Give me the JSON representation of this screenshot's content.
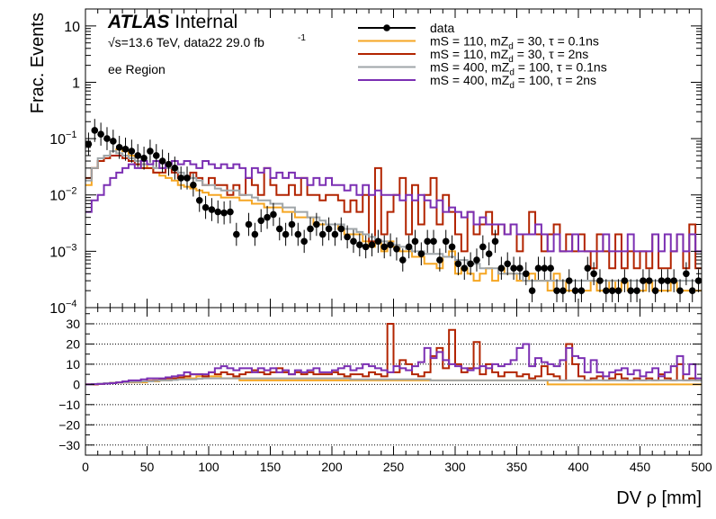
{
  "chart_data": [
    {
      "type": "line",
      "panel": "upper",
      "header": {
        "experiment": "ATLAS",
        "status": "Internal",
        "energy_line": "√s=13.6 TeV, data22 29.0 fb",
        "energy_line_sup": "-1",
        "region": "ee Region"
      },
      "ylabel": "Frac. Events",
      "y_scale": "log",
      "ylim": [
        0.0001,
        20
      ],
      "y_ticks": [
        {
          "value": 10,
          "label": "10"
        },
        {
          "value": 1,
          "label": "1"
        },
        {
          "value": 0.1,
          "label": "10",
          "exp": "−1"
        },
        {
          "value": 0.01,
          "label": "10",
          "exp": "−2"
        },
        {
          "value": 0.001,
          "label": "10",
          "exp": "−3"
        },
        {
          "value": 0.0001,
          "label": "10",
          "exp": "−4"
        }
      ],
      "xlim": [
        0,
        500
      ],
      "legend_position": "top-right",
      "series": [
        {
          "name": "data",
          "color": "#000000",
          "style": "markers",
          "values": [
            0.08,
            0.14,
            0.12,
            0.1,
            0.09,
            0.07,
            0.065,
            0.06,
            0.05,
            0.045,
            0.06,
            0.05,
            0.04,
            0.035,
            0.03,
            0.02,
            0.02,
            0.015,
            0.008,
            0.006,
            0.0055,
            0.005,
            0.0048,
            0.005,
            0.002,
            null,
            0.003,
            0.002,
            0.0035,
            0.004,
            0.0045,
            0.0025,
            0.002,
            0.003,
            0.002,
            0.0015,
            0.0025,
            0.003,
            0.002,
            0.0025,
            0.002,
            0.0025,
            0.0018,
            0.0015,
            0.0013,
            0.0012,
            0.0013,
            0.0015,
            0.0012,
            0.0013,
            0.0011,
            0.0007,
            0.0012,
            0.0015,
            0.0009,
            0.0015,
            0.0015,
            0.0007,
            0.0015,
            0.0012,
            0.0006,
            0.0005,
            0.0006,
            0.0007,
            0.0012,
            0.0009,
            0.0015,
            0.0005,
            0.0006,
            0.0005,
            0.0005,
            0.0004,
            0.0002,
            0.0005,
            0.0005,
            0.0005,
            0.0002,
            0.0002,
            0.0003,
            0.0002,
            0.0002,
            0.0005,
            0.0004,
            0.0003,
            0.0002,
            0.0002,
            0.0002,
            0.0003,
            0.0002,
            0.0002,
            0.0003,
            0.0003,
            0.0002,
            0.0003,
            0.0003,
            0.0003,
            0.0002,
            0.0004,
            0.0002,
            0.0003
          ]
        },
        {
          "name": "mS = 110, mZ_d = 30, τ = 0.1ns",
          "color": "#f5a623",
          "style": "step",
          "values": [
            0.015,
            0.03,
            0.04,
            0.05,
            0.06,
            0.065,
            0.06,
            0.05,
            0.04,
            0.035,
            0.03,
            0.025,
            0.022,
            0.02,
            0.018,
            0.015,
            0.014,
            0.013,
            0.012,
            0.011,
            0.01,
            0.01,
            0.009,
            0.009,
            0.009,
            0.008,
            0.008,
            0.007,
            0.007,
            0.006,
            0.006,
            0.006,
            0.005,
            0.005,
            0.004,
            0.004,
            0.004,
            0.003,
            0.003,
            0.003,
            0.003,
            0.0025,
            0.002,
            0.002,
            0.002,
            0.0015,
            0.0012,
            0.0015,
            0.001,
            0.0015,
            0.0012,
            0.001,
            0.001,
            0.0008,
            0.0008,
            0.0006,
            0.0006,
            0.0005,
            0.0008,
            0.001,
            0.0004,
            0.0005,
            0.0004,
            0.0003,
            0.0004,
            0.0005,
            0.0003,
            0.0005,
            0.0004,
            0.0004,
            0.0003,
            0.0003,
            0.0004,
            0.0003,
            0.0003,
            0.0002,
            0.0004,
            0.0003,
            0.0002,
            0.0002,
            0.0002,
            0.0002,
            0.0003,
            0.0002,
            0.0002,
            0.0003,
            0.0002,
            0.0003,
            0.0002,
            0.0002,
            0.0002,
            0.0003,
            0.0002,
            0.0002,
            0.0002,
            0.0003,
            0.0002,
            0.0002,
            0.0002,
            0.0002
          ]
        },
        {
          "name": "mS = 110, mZ_d = 30, τ = 2ns",
          "color": "#b22400",
          "style": "step",
          "values": [
            0.02,
            0.03,
            0.04,
            0.045,
            0.05,
            0.05,
            0.045,
            0.04,
            0.035,
            0.03,
            0.03,
            0.025,
            0.025,
            0.03,
            0.025,
            0.02,
            0.02,
            0.025,
            0.02,
            0.015,
            0.02,
            0.015,
            0.015,
            0.01,
            0.015,
            0.01,
            0.02,
            0.015,
            0.01,
            0.03,
            0.015,
            0.01,
            0.01,
            0.015,
            0.01,
            0.02,
            0.01,
            0.01,
            0.008,
            0.01,
            0.01,
            0.008,
            0.005,
            0.008,
            0.005,
            0.01,
            0.0015,
            0.03,
            0.002,
            0.005,
            0.01,
            0.02,
            0.002,
            0.015,
            0.003,
            0.01,
            0.02,
            0.003,
            0.01,
            0.005,
            0.002,
            0.001,
            0.005,
            0.002,
            0.003,
            0.005,
            0.002,
            0.003,
            0.002,
            0.003,
            0.001,
            0.002,
            0.005,
            0.002,
            0.001,
            0.002,
            0.003,
            0.001,
            0.002,
            0.001,
            0.002,
            0.001,
            0.0005,
            0.002,
            0.001,
            0.0005,
            0.002,
            0.0005,
            0.001,
            0.0005,
            0.001,
            0.0005,
            0.002,
            0.0005,
            0.0005,
            0.001,
            0.002,
            0.0005,
            0.003,
            0.0005
          ]
        },
        {
          "name": "mS = 400, mZ_d = 100, τ = 0.1ns",
          "color": "#9fa5a8",
          "style": "step",
          "values": [
            0.018,
            0.03,
            0.045,
            0.05,
            0.06,
            0.055,
            0.05,
            0.045,
            0.04,
            0.035,
            0.035,
            0.03,
            0.03,
            0.03,
            0.03,
            0.025,
            0.02,
            0.02,
            0.018,
            0.015,
            0.015,
            0.013,
            0.012,
            0.012,
            0.012,
            0.01,
            0.01,
            0.009,
            0.008,
            0.008,
            0.007,
            0.007,
            0.006,
            0.006,
            0.005,
            0.005,
            0.004,
            0.004,
            0.0035,
            0.003,
            0.003,
            0.003,
            0.0025,
            0.0025,
            0.0022,
            0.002,
            0.0018,
            0.0016,
            0.0015,
            0.0014,
            0.0013,
            0.0012,
            0.0011,
            0.001,
            0.001,
            0.0009,
            0.0009,
            0.0009,
            0.0008,
            0.0008,
            0.0007,
            0.0007,
            0.0006,
            0.0006,
            0.0005,
            0.0005,
            0.0005,
            0.0004,
            0.0004,
            0.0004,
            0.0004,
            0.0003,
            0.0003,
            0.0003,
            0.0003,
            0.0003,
            0.0003,
            0.0003,
            0.0003,
            0.0003,
            0.0003,
            0.0003,
            0.0003,
            0.0003,
            0.0003,
            0.0003,
            0.0003,
            0.0003,
            0.0003,
            0.0003,
            0.0003,
            0.0003,
            0.0003,
            0.0003,
            0.0003,
            0.0003,
            0.0003,
            0.0003,
            0.0003,
            0.0003
          ]
        },
        {
          "name": "mS = 400, mZ_d = 100, τ = 2ns",
          "color": "#7b2fb3",
          "style": "step",
          "values": [
            0.005,
            0.008,
            0.01,
            0.015,
            0.02,
            0.025,
            0.03,
            0.035,
            0.03,
            0.04,
            0.035,
            0.04,
            0.03,
            0.035,
            0.04,
            0.035,
            0.04,
            0.035,
            0.03,
            0.04,
            0.035,
            0.03,
            0.035,
            0.03,
            0.035,
            0.03,
            0.02,
            0.03,
            0.025,
            0.03,
            0.02,
            0.025,
            0.02,
            0.025,
            0.02,
            0.02,
            0.015,
            0.02,
            0.015,
            0.02,
            0.015,
            0.015,
            0.012,
            0.015,
            0.01,
            0.015,
            0.01,
            0.012,
            0.01,
            0.01,
            0.01,
            0.008,
            0.01,
            0.008,
            0.01,
            0.008,
            0.006,
            0.008,
            0.005,
            0.006,
            0.005,
            0.004,
            0.005,
            0.003,
            0.004,
            0.003,
            0.003,
            0.003,
            0.002,
            0.003,
            0.002,
            0.002,
            0.002,
            0.003,
            0.002,
            0.001,
            0.002,
            0.001,
            0.001,
            0.002,
            0.001,
            0.001,
            0.001,
            0.001,
            0.002,
            0.001,
            0.001,
            0.001,
            0.002,
            0.001,
            0.001,
            0.001,
            0.002,
            0.001,
            0.002,
            0.001,
            0.002,
            0.001,
            0.002,
            0.001
          ]
        }
      ]
    },
    {
      "type": "line",
      "panel": "lower",
      "xlabel": "DV ρ [mm]",
      "xlim": [
        0,
        500
      ],
      "x_ticks": [
        0,
        50,
        100,
        150,
        200,
        250,
        300,
        350,
        400,
        450,
        500
      ],
      "ylim": [
        -35,
        38
      ],
      "y_ticks": [
        30,
        20,
        10,
        0,
        -10,
        -20,
        -30
      ],
      "y_tick_labels": [
        "30",
        "20",
        "10",
        "0",
        "−10",
        "−20",
        "−30"
      ],
      "grid": "horizontal dotted",
      "series": [
        {
          "name": "mS = 110, mZ_d = 30, τ = 0.1ns",
          "color": "#f5a623",
          "values": [
            0,
            0,
            0.2,
            0.5,
            0.8,
            1,
            1,
            1,
            1,
            1,
            1.5,
            1.5,
            2,
            2,
            2.5,
            3,
            3,
            3,
            4,
            4,
            4,
            4,
            3,
            3,
            3,
            2,
            2,
            2,
            2,
            2,
            2,
            2,
            2,
            2,
            2,
            2,
            2,
            2,
            2,
            2,
            2,
            2,
            2,
            2,
            2,
            2,
            2,
            2,
            2,
            2,
            2,
            2,
            2,
            2,
            2,
            2,
            2,
            2,
            2,
            2,
            2,
            2,
            2,
            2,
            2,
            2,
            2,
            2,
            2,
            2,
            2,
            2,
            2,
            2,
            2,
            0,
            0,
            0,
            0,
            0,
            0,
            0,
            0,
            0,
            0,
            0,
            0,
            0,
            0,
            0,
            0,
            0,
            0,
            0,
            0,
            0,
            0,
            0,
            0,
            0
          ]
        },
        {
          "name": "mS = 110, mZ_d = 30, τ = 2ns",
          "color": "#b22400",
          "values": [
            0,
            0,
            0.3,
            0.6,
            0.8,
            1,
            1,
            1.2,
            1.5,
            1.5,
            1.8,
            2,
            2.5,
            3,
            3,
            3.5,
            4,
            5,
            5,
            4,
            6,
            5,
            6,
            5,
            4,
            5,
            6,
            7,
            6,
            5,
            6,
            8,
            6,
            5,
            6,
            5,
            6,
            5,
            5,
            5,
            6,
            5,
            4,
            5,
            5,
            4,
            6,
            5,
            4,
            30,
            6,
            12,
            10,
            5,
            4,
            6,
            14,
            18,
            8,
            27,
            10,
            6,
            8,
            21,
            5,
            10,
            6,
            4,
            6,
            6,
            4,
            5,
            3,
            4,
            9,
            5,
            4,
            2,
            20,
            10,
            4,
            2,
            3,
            4,
            2,
            3,
            5,
            3,
            2,
            3,
            2,
            3,
            2,
            5,
            3,
            2,
            10,
            2,
            3,
            2
          ]
        },
        {
          "name": "mS = 400, mZ_d = 100, τ = 0.1ns",
          "color": "#9fa5a8",
          "values": [
            0,
            0.2,
            0.4,
            0.6,
            0.8,
            1,
            1,
            1.2,
            1.2,
            1.5,
            1.5,
            1.8,
            2,
            2,
            2.2,
            2.5,
            2.5,
            2.5,
            2.8,
            3,
            3,
            3,
            3,
            3,
            3,
            3,
            3,
            3,
            3,
            3,
            3,
            3,
            3,
            3,
            3,
            3,
            3,
            3,
            3,
            3,
            3,
            3,
            3,
            2.5,
            2.5,
            2.5,
            2.5,
            2.5,
            2.5,
            2.5,
            2.5,
            2.5,
            2.5,
            2.5,
            2.5,
            2.5,
            2,
            2,
            2,
            2,
            2,
            2,
            2,
            2,
            2,
            2,
            2,
            2,
            2,
            2,
            2,
            2,
            2,
            2,
            2,
            2,
            2,
            2,
            2,
            2,
            2,
            2,
            2,
            2,
            2,
            2,
            2,
            2,
            2,
            2,
            2,
            2,
            2,
            2,
            2,
            2,
            2,
            2,
            2,
            2
          ]
        },
        {
          "name": "mS = 400, mZ_d = 100, τ = 2ns",
          "color": "#7b2fb3",
          "values": [
            0,
            0.1,
            0.2,
            0.4,
            0.6,
            1,
            1.5,
            2,
            2,
            2.5,
            3,
            3,
            3,
            3.5,
            4,
            4.5,
            6,
            5,
            5,
            5,
            6,
            8,
            9,
            8,
            7,
            8,
            8,
            6,
            8,
            7,
            8,
            6,
            7,
            5,
            7,
            6,
            7,
            8,
            6,
            6,
            7,
            8,
            9,
            7,
            8,
            10,
            9,
            8,
            7,
            6,
            9,
            8,
            7,
            9,
            11,
            18,
            13,
            16,
            12,
            10,
            9,
            8,
            7,
            8,
            9,
            8,
            10,
            9,
            10,
            12,
            18,
            20,
            9,
            13,
            11,
            10,
            9,
            12,
            18,
            14,
            13,
            6,
            12,
            6,
            4,
            6,
            7,
            8,
            5,
            7,
            4,
            6,
            8,
            4,
            6,
            9,
            14,
            5,
            10,
            3
          ]
        }
      ]
    }
  ]
}
